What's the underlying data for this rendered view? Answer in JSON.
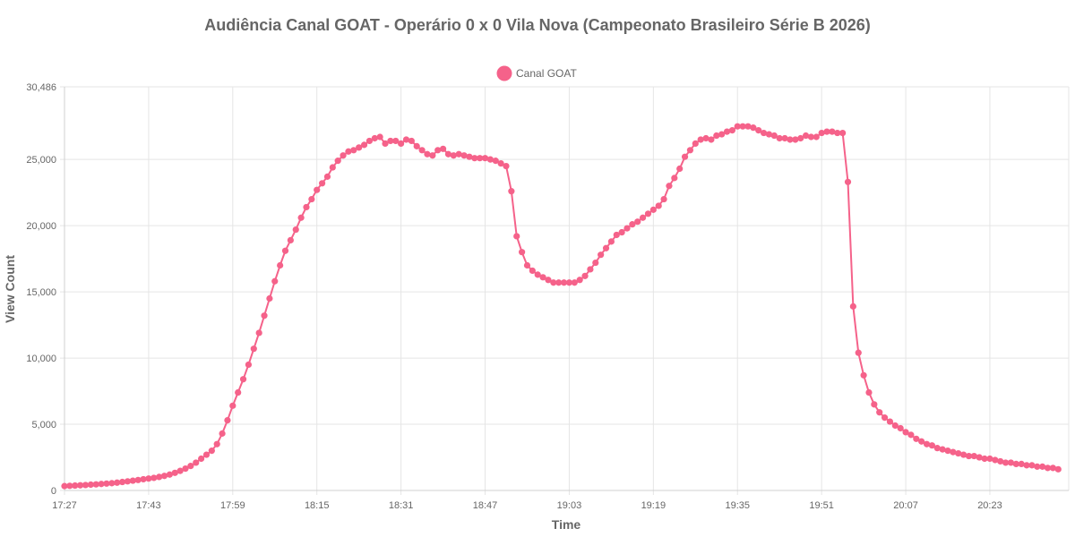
{
  "chart_data": {
    "type": "line",
    "title": "Audiência Canal GOAT - Operário 0 x 0 Vila Nova (Campeonato Brasileiro Série B 2026)",
    "xlabel": "Time",
    "ylabel": "View Count",
    "x_tick_labels": [
      "17:27",
      "17:43",
      "17:59",
      "18:15",
      "18:31",
      "18:47",
      "19:03",
      "19:19",
      "19:35",
      "19:51",
      "20:07",
      "20:23"
    ],
    "x_tick_minutes": [
      0,
      16,
      32,
      48,
      64,
      80,
      96,
      112,
      128,
      144,
      160,
      176
    ],
    "x_range_minutes": [
      0,
      191
    ],
    "y_tick_labels": [
      "0",
      "5,000",
      "10,000",
      "15,000",
      "20,000",
      "25,000",
      "30,486"
    ],
    "y_tick_values": [
      0,
      5000,
      10000,
      15000,
      20000,
      25000,
      30486
    ],
    "ylim": [
      0,
      30486
    ],
    "grid": true,
    "legend_position": "top",
    "series": [
      {
        "name": "Canal GOAT",
        "color": "#f5628a",
        "values": [
          330,
          350,
          370,
          390,
          410,
          440,
          460,
          490,
          520,
          550,
          590,
          640,
          690,
          740,
          790,
          850,
          900,
          950,
          1020,
          1100,
          1200,
          1330,
          1480,
          1650,
          1850,
          2100,
          2400,
          2700,
          3000,
          3500,
          4300,
          5300,
          6400,
          7400,
          8400,
          9500,
          10700,
          11900,
          13200,
          14500,
          15800,
          17000,
          18100,
          18900,
          19700,
          20600,
          21400,
          22000,
          22700,
          23200,
          23700,
          24400,
          24900,
          25300,
          25600,
          25700,
          25900,
          26100,
          26400,
          26600,
          26700,
          26200,
          26400,
          26400,
          26200,
          26500,
          26400,
          26000,
          25700,
          25400,
          25300,
          25700,
          25800,
          25400,
          25300,
          25400,
          25300,
          25200,
          25100,
          25100,
          25100,
          25000,
          24900,
          24700,
          24500,
          22600,
          19200,
          18000,
          17000,
          16600,
          16300,
          16100,
          15900,
          15700,
          15700,
          15700,
          15700,
          15700,
          15900,
          16200,
          16700,
          17200,
          17800,
          18300,
          18800,
          19300,
          19500,
          19800,
          20100,
          20300,
          20600,
          20900,
          21200,
          21500,
          22000,
          23000,
          23600,
          24300,
          25200,
          25700,
          26200,
          26500,
          26600,
          26500,
          26800,
          26900,
          27100,
          27200,
          27500,
          27500,
          27500,
          27400,
          27200,
          27000,
          26900,
          26800,
          26600,
          26600,
          26500,
          26500,
          26600,
          26800,
          26700,
          26700,
          27000,
          27100,
          27100,
          27000,
          27000,
          23300,
          13900,
          10400,
          8700,
          7400,
          6500,
          5900,
          5500,
          5200,
          4900,
          4700,
          4400,
          4200,
          3900,
          3700,
          3500,
          3400,
          3200,
          3100,
          3000,
          2900,
          2800,
          2700,
          2600,
          2600,
          2500,
          2400,
          2400,
          2300,
          2200,
          2100,
          2100,
          2000,
          2000,
          1900,
          1900,
          1800,
          1800,
          1700,
          1700,
          1600
        ]
      }
    ]
  }
}
